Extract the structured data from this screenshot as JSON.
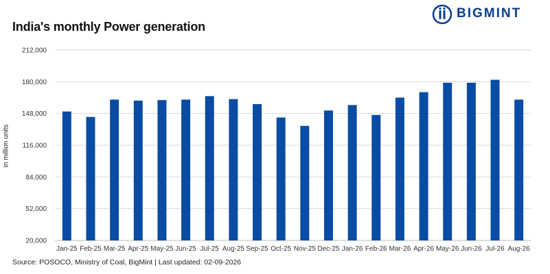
{
  "brand": {
    "name": "BIGMINT",
    "color": "#0a3d91"
  },
  "chart_data": {
    "type": "bar",
    "title": "India's monthly Power generation",
    "ylabel": "in million units",
    "xlabel": "",
    "ylim": [
      20000,
      212000
    ],
    "yticks": [
      20000,
      52000,
      84000,
      116000,
      148000,
      180000,
      212000
    ],
    "ytick_labels": [
      "20,000",
      "52,000",
      "84,000",
      "116,000",
      "148,000",
      "180,000",
      "212,000"
    ],
    "grid": "horizontal",
    "bar_color": "#0a4ca3",
    "categories": [
      "Jan-25",
      "Feb-25",
      "Mar-25",
      "Apr-25",
      "May-25",
      "Jun-25",
      "Jul-25",
      "Aug-25",
      "Sep-25",
      "Oct-25",
      "Nov-25",
      "Dec-25",
      "Jan-26",
      "Feb-26",
      "Mar-26",
      "Apr-26",
      "May-26",
      "Jun-26",
      "Jul-26",
      "Aug-26"
    ],
    "values": [
      150000,
      144500,
      162000,
      161000,
      161500,
      162000,
      165500,
      162500,
      157500,
      144000,
      135500,
      151000,
      156500,
      146500,
      164000,
      169500,
      179000,
      179000,
      182000,
      162000
    ]
  },
  "source": "Source: POSOCO, Ministry of Coal, BigMint | Last updated: 02-09-2026"
}
